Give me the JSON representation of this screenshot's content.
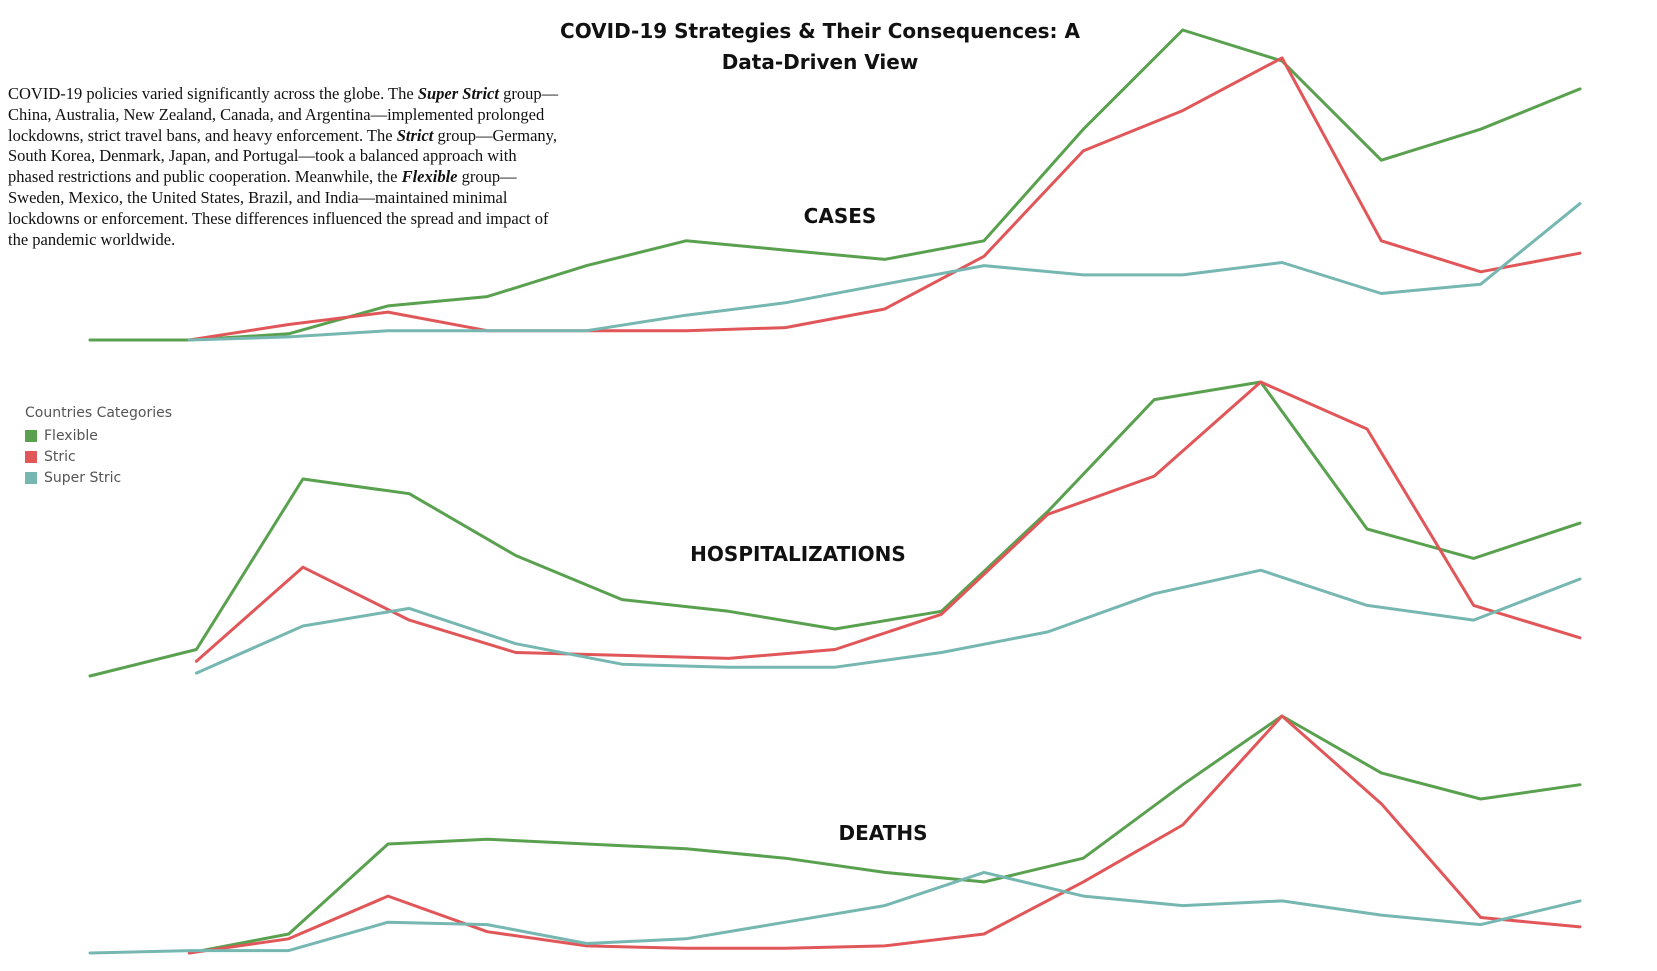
{
  "page": {
    "title_line1": "COVID-19 Strategies & Their Consequences: A",
    "title_line2": "Data-Driven View"
  },
  "intro": {
    "p1": "COVID-19 policies varied significantly across the globe. The ",
    "super_strict": "Super Strict",
    "p2": " group—China, Australia, New Zealand, Canada, and Argentina—implemented prolonged lockdowns, strict travel bans, and heavy enforcement. The ",
    "strict": "Strict",
    "p3": " group—Germany, South Korea, Denmark, Japan, and Portugal—took a balanced approach with phased restrictions and public cooperation. Meanwhile, the ",
    "flexible": "Flexible",
    "p4": " group—Sweden, Mexico, the United States, Brazil, and India—maintained minimal lockdowns or enforcement. These differences influenced the spread and impact of the pandemic worldwide."
  },
  "legend": {
    "title": "Countries Categories",
    "items": [
      {
        "label": "Flexible",
        "color": "#59a14f"
      },
      {
        "label": "Stric",
        "color": "#e15759"
      },
      {
        "label": "Super Stric",
        "color": "#76b7b2"
      }
    ]
  },
  "chart_data": [
    {
      "type": "line",
      "title": "CASES",
      "ylim": [
        0,
        100
      ],
      "series": [
        {
          "name": "Flexible",
          "color": "#59a14f",
          "x": [
            0,
            1,
            2,
            3,
            4,
            5,
            6,
            7,
            8,
            9,
            10,
            11,
            12,
            13,
            14,
            15
          ],
          "values": [
            0,
            0,
            2,
            11,
            14,
            24,
            32,
            29,
            26,
            32,
            68,
            100,
            90,
            58,
            68,
            81
          ]
        },
        {
          "name": "Stric",
          "color": "#e15759",
          "x": [
            1,
            2,
            3,
            4,
            5,
            6,
            7,
            8,
            9,
            10,
            11,
            12,
            13,
            14,
            15
          ],
          "values": [
            0,
            5,
            9,
            3,
            3,
            3,
            4,
            10,
            27,
            61,
            74,
            91,
            32,
            22,
            28
          ]
        },
        {
          "name": "Super Stric",
          "color": "#76b7b2",
          "x": [
            1,
            2,
            3,
            4,
            5,
            6,
            7,
            8,
            9,
            10,
            11,
            12,
            13,
            14,
            15
          ],
          "values": [
            0,
            1,
            3,
            3,
            3,
            8,
            12,
            18,
            24,
            21,
            21,
            25,
            15,
            18,
            44
          ]
        }
      ]
    },
    {
      "type": "line",
      "title": "HOSPITALIZATIONS",
      "ylim": [
        0,
        100
      ],
      "series": [
        {
          "name": "Flexible",
          "color": "#59a14f",
          "x": [
            0,
            1,
            2,
            3,
            4,
            5,
            6,
            7,
            8,
            9,
            10,
            11,
            12,
            13,
            14
          ],
          "values": [
            0,
            9,
            67,
            62,
            41,
            26,
            22,
            16,
            22,
            56,
            94,
            100,
            50,
            40,
            52
          ]
        },
        {
          "name": "Stric",
          "color": "#e15759",
          "x": [
            1,
            2,
            3,
            4,
            5,
            6,
            7,
            8,
            9,
            10,
            11,
            12,
            13,
            14
          ],
          "values": [
            5,
            37,
            19,
            8,
            7,
            6,
            9,
            21,
            55,
            68,
            100,
            84,
            24,
            13
          ]
        },
        {
          "name": "Super Stric",
          "color": "#76b7b2",
          "x": [
            1,
            2,
            3,
            4,
            5,
            6,
            7,
            8,
            9,
            10,
            11,
            12,
            13,
            14
          ],
          "values": [
            1,
            17,
            23,
            11,
            4,
            3,
            3,
            8,
            15,
            28,
            36,
            24,
            19,
            33
          ]
        }
      ]
    },
    {
      "type": "line",
      "title": "DEATHS",
      "ylim": [
        0,
        100
      ],
      "series": [
        {
          "name": "Flexible",
          "color": "#59a14f",
          "x": [
            1,
            2,
            3,
            4,
            5,
            6,
            7,
            8,
            9,
            10,
            11,
            12,
            13,
            14,
            15
          ],
          "values": [
            0,
            8,
            46,
            48,
            46,
            44,
            40,
            34,
            30,
            40,
            71,
            100,
            76,
            65,
            71
          ]
        },
        {
          "name": "Stric",
          "color": "#e15759",
          "x": [
            1,
            2,
            3,
            4,
            5,
            6,
            7,
            8,
            9,
            10,
            11,
            12,
            13,
            14,
            15
          ],
          "values": [
            0,
            6,
            24,
            9,
            3,
            2,
            2,
            3,
            8,
            30,
            54,
            100,
            63,
            15,
            11
          ]
        },
        {
          "name": "Super Stric",
          "color": "#76b7b2",
          "x": [
            0,
            1,
            2,
            3,
            4,
            5,
            6,
            7,
            8,
            9,
            10,
            11,
            12,
            13,
            14,
            15
          ],
          "values": [
            0,
            1,
            1,
            13,
            12,
            4,
            6,
            13,
            20,
            34,
            24,
            20,
            22,
            16,
            12,
            22
          ]
        }
      ]
    }
  ]
}
